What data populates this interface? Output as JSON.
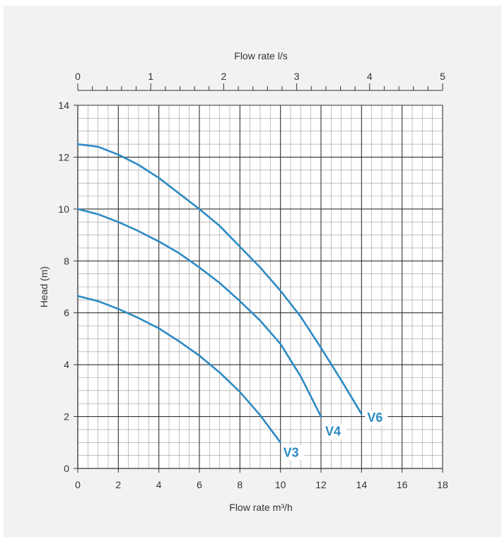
{
  "chart_data": {
    "type": "line",
    "title": "",
    "xlabel": "Flow rate m³/h",
    "ylabel": "Head (m)",
    "x2label": "Flow rate l/s",
    "xlim": [
      0,
      18
    ],
    "ylim": [
      0,
      14
    ],
    "x2lim": [
      0,
      5
    ],
    "x_ticks": [
      "0",
      "2",
      "4",
      "6",
      "8",
      "10",
      "12",
      "14",
      "16",
      "18"
    ],
    "y_ticks": [
      "0",
      "2",
      "4",
      "6",
      "8",
      "10",
      "12",
      "14"
    ],
    "x2_ticks": [
      "0",
      "1",
      "2",
      "3",
      "4",
      "5"
    ],
    "grid": true,
    "series_color": "#2b8ac4",
    "series": [
      {
        "name": "V3",
        "x": [
          0,
          1,
          2,
          3,
          4,
          5,
          6,
          7,
          8,
          9,
          10
        ],
        "y": [
          6.65,
          6.45,
          6.15,
          5.8,
          5.4,
          4.9,
          4.35,
          3.7,
          2.95,
          2.05,
          1.0
        ]
      },
      {
        "name": "V4",
        "x": [
          0,
          1,
          2,
          3,
          4,
          5,
          6,
          7,
          8,
          9,
          10,
          11,
          12
        ],
        "y": [
          10.0,
          9.8,
          9.5,
          9.15,
          8.75,
          8.3,
          7.75,
          7.15,
          6.45,
          5.7,
          4.8,
          3.55,
          2.0
        ]
      },
      {
        "name": "V6",
        "x": [
          0,
          1,
          2,
          3,
          4,
          5,
          6,
          7,
          8,
          9,
          10,
          11,
          12,
          13,
          14
        ],
        "y": [
          12.5,
          12.4,
          12.1,
          11.7,
          11.2,
          10.6,
          10.0,
          9.35,
          8.55,
          7.75,
          6.85,
          5.85,
          4.65,
          3.4,
          2.1
        ]
      }
    ]
  }
}
